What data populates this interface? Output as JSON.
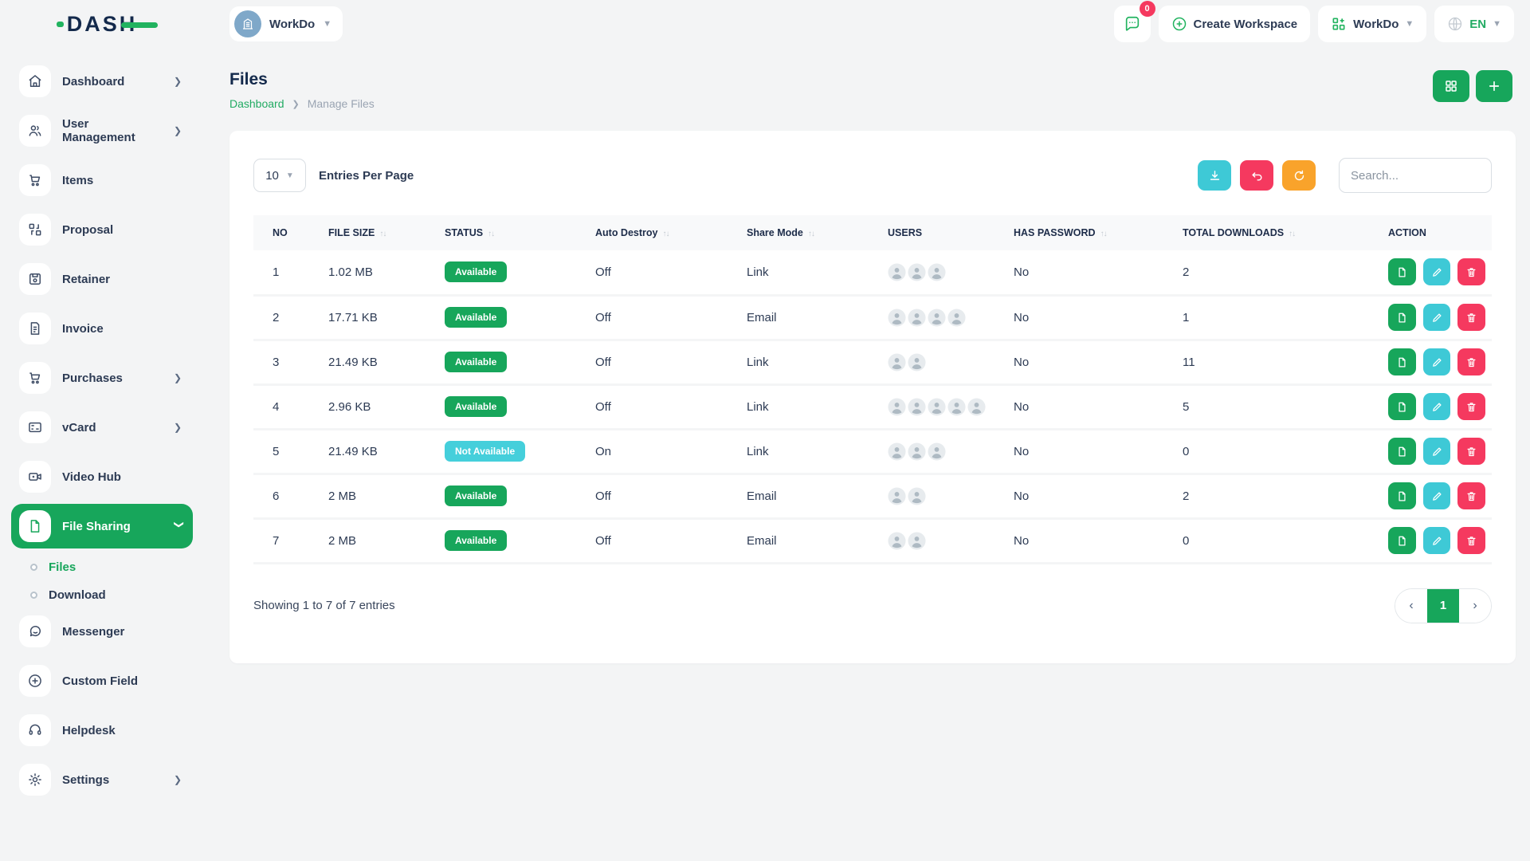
{
  "brand": {
    "name": "DASH"
  },
  "topbar": {
    "workspace_name": "WorkDo",
    "messages_badge": "0",
    "create_workspace_label": "Create Workspace",
    "app_menu_label": "WorkDo",
    "language": "EN"
  },
  "sidebar": {
    "items": [
      {
        "label": "Dashboard"
      },
      {
        "label": "User Management"
      },
      {
        "label": "Items"
      },
      {
        "label": "Proposal"
      },
      {
        "label": "Retainer"
      },
      {
        "label": "Invoice"
      },
      {
        "label": "Purchases"
      },
      {
        "label": "vCard"
      },
      {
        "label": "Video Hub"
      },
      {
        "label": "File Sharing"
      },
      {
        "label": "Files"
      },
      {
        "label": "Download"
      },
      {
        "label": "Messenger"
      },
      {
        "label": "Custom Field"
      },
      {
        "label": "Helpdesk"
      },
      {
        "label": "Settings"
      }
    ]
  },
  "page": {
    "title": "Files",
    "breadcrumb": {
      "parent": "Dashboard",
      "current": "Manage Files"
    }
  },
  "toolbar": {
    "entries_per_page_value": "10",
    "entries_label": "Entries Per Page",
    "search_placeholder": "Search..."
  },
  "table": {
    "columns": [
      {
        "label": "NO",
        "sortable": false
      },
      {
        "label": "FILE SIZE",
        "sortable": true
      },
      {
        "label": "STATUS",
        "sortable": true
      },
      {
        "label": "Auto Destroy",
        "sortable": true
      },
      {
        "label": "Share Mode",
        "sortable": true
      },
      {
        "label": "USERS",
        "sortable": false
      },
      {
        "label": "HAS PASSWORD",
        "sortable": true
      },
      {
        "label": "TOTAL DOWNLOADS",
        "sortable": true
      },
      {
        "label": "ACTION",
        "sortable": false
      }
    ],
    "rows": [
      {
        "no": "1",
        "file_size": "1.02 MB",
        "status": "Available",
        "auto_destroy": "Off",
        "share_mode": "Link",
        "users_count": 3,
        "has_password": "No",
        "total_downloads": "2"
      },
      {
        "no": "2",
        "file_size": "17.71 KB",
        "status": "Available",
        "auto_destroy": "Off",
        "share_mode": "Email",
        "users_count": 4,
        "has_password": "No",
        "total_downloads": "1"
      },
      {
        "no": "3",
        "file_size": "21.49 KB",
        "status": "Available",
        "auto_destroy": "Off",
        "share_mode": "Link",
        "users_count": 2,
        "has_password": "No",
        "total_downloads": "11"
      },
      {
        "no": "4",
        "file_size": "2.96 KB",
        "status": "Available",
        "auto_destroy": "Off",
        "share_mode": "Link",
        "users_count": 5,
        "has_password": "No",
        "total_downloads": "5"
      },
      {
        "no": "5",
        "file_size": "21.49 KB",
        "status": "Not Available",
        "auto_destroy": "On",
        "share_mode": "Link",
        "users_count": 3,
        "has_password": "No",
        "total_downloads": "0"
      },
      {
        "no": "6",
        "file_size": "2 MB",
        "status": "Available",
        "auto_destroy": "Off",
        "share_mode": "Email",
        "users_count": 2,
        "has_password": "No",
        "total_downloads": "2"
      },
      {
        "no": "7",
        "file_size": "2 MB",
        "status": "Available",
        "auto_destroy": "Off",
        "share_mode": "Email",
        "users_count": 2,
        "has_password": "No",
        "total_downloads": "0"
      }
    ]
  },
  "footer": {
    "showing_text": "Showing 1 to 7 of 7 entries",
    "current_page": "1"
  },
  "colors": {
    "primary_green": "#17a65b",
    "teal": "#3ec9d6",
    "pink": "#f5395f",
    "orange": "#f9a32b",
    "navy": "#13294b"
  }
}
